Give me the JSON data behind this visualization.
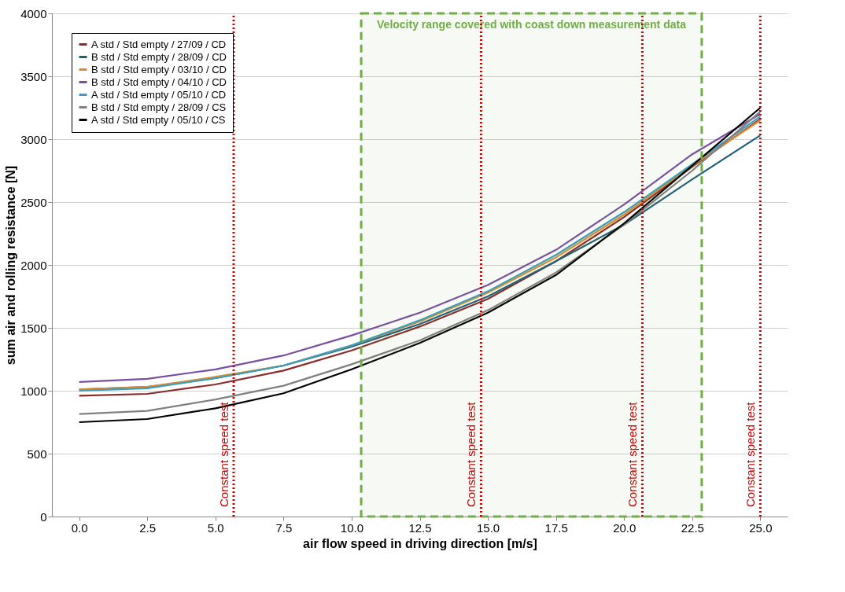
{
  "chart_data": {
    "type": "line",
    "xlabel": "air flow speed in driving direction [m/s]",
    "ylabel": "sum air and rolling resistance [N]",
    "x": [
      0,
      2.5,
      5,
      7.5,
      10,
      12.5,
      15,
      17.5,
      20,
      22.5,
      25
    ],
    "xlim": [
      -1,
      26
    ],
    "xticks": [
      {
        "value": 0,
        "label": "0.0"
      },
      {
        "value": 2.5,
        "label": "2.5"
      },
      {
        "value": 5,
        "label": "5.0"
      },
      {
        "value": 7.5,
        "label": "7.5"
      },
      {
        "value": 10,
        "label": "10.0"
      },
      {
        "value": 12.5,
        "label": "12.5"
      },
      {
        "value": 15,
        "label": "15.0"
      },
      {
        "value": 17.5,
        "label": "17.5"
      },
      {
        "value": 20,
        "label": "20.0"
      },
      {
        "value": 22.5,
        "label": "22.5"
      },
      {
        "value": 25,
        "label": "25.0"
      }
    ],
    "ylim": [
      0,
      4000
    ],
    "yticks": [
      0,
      500,
      1000,
      1500,
      2000,
      2500,
      3000,
      3500,
      4000
    ],
    "grid": "y",
    "legend": "top left",
    "marker": "none",
    "line_style": "solid",
    "series": [
      {
        "name": "A std / Std empty / 27/09 / CD",
        "color": "#8b2a2a",
        "values": [
          960,
          975,
          1050,
          1160,
          1320,
          1510,
          1730,
          2030,
          2380,
          2780,
          3160
        ]
      },
      {
        "name": "B std / Std empty / 28/09 / CD",
        "color": "#1f5f7a",
        "values": [
          1010,
          1030,
          1100,
          1200,
          1350,
          1530,
          1750,
          2030,
          2320,
          2680,
          3030
        ]
      },
      {
        "name": "B std / Std empty / 03/10 / CD",
        "color": "#e08a30",
        "values": [
          1010,
          1030,
          1110,
          1200,
          1360,
          1550,
          1780,
          2060,
          2400,
          2790,
          3150
        ]
      },
      {
        "name": "B std / Std empty / 04/10 / CD",
        "color": "#7a4fa0",
        "values": [
          1070,
          1095,
          1170,
          1280,
          1440,
          1620,
          1840,
          2120,
          2480,
          2880,
          3200
        ]
      },
      {
        "name": "A std / Std empty / 05/10 / CD",
        "color": "#3a9fc0",
        "values": [
          1000,
          1020,
          1100,
          1200,
          1360,
          1560,
          1790,
          2080,
          2420,
          2800,
          3180
        ]
      },
      {
        "name": "B std / Std empty / 28/09 / CS",
        "color": "#808080",
        "values": [
          815,
          840,
          930,
          1040,
          1210,
          1400,
          1640,
          1940,
          2320,
          2750,
          3220
        ]
      },
      {
        "name": "A std / Std empty / 05/10 / CS",
        "color": "#000000",
        "values": [
          750,
          775,
          860,
          980,
          1170,
          1380,
          1620,
          1920,
          2330,
          2790,
          3250
        ]
      }
    ],
    "ref_lines": [
      {
        "axis": "x",
        "value": 5.67,
        "label": "Constant speed test",
        "color": "#cc0000",
        "line_style": "dotted"
      },
      {
        "axis": "x",
        "value": 14.75,
        "label": "Constant speed test",
        "color": "#cc0000",
        "line_style": "dotted"
      },
      {
        "axis": "x",
        "value": 20.67,
        "label": "Constant speed test",
        "color": "#cc0000",
        "line_style": "dotted"
      },
      {
        "axis": "x",
        "value": 25,
        "label": "Constant speed test",
        "color": "#cc0000",
        "line_style": "dotted"
      }
    ],
    "bands": [
      {
        "axis": "x",
        "from": 10.35,
        "to": 22.85,
        "label": "Velocity range covered with coast down measurement data",
        "color": "#70ad47"
      }
    ]
  }
}
